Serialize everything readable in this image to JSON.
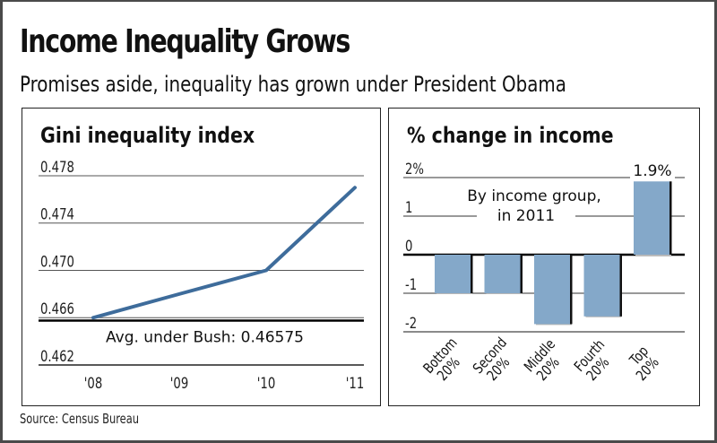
{
  "header": {
    "title": "Income Inequality Grows",
    "subtitle": "Promises aside, inequality has grown under President Obama"
  },
  "source": "Source: Census Bureau",
  "colors": {
    "line": "#3e6c9b",
    "bar": "#84a8c9",
    "bar_shadow": "#111111",
    "grid": "#222222",
    "axis_bottom": "#8a8a8a"
  },
  "chart_data": [
    {
      "type": "line",
      "title": "Gini inequality index",
      "x": [
        "'08",
        "'09",
        "'10",
        "'11"
      ],
      "series": [
        {
          "name": "Gini index",
          "values": [
            0.466,
            0.468,
            0.47,
            0.477
          ]
        }
      ],
      "yticks": [
        "0.478",
        "0.474",
        "0.470",
        "0.466",
        "0.462"
      ],
      "ytick_values": [
        0.478,
        0.474,
        0.47,
        0.466,
        0.462
      ],
      "ylim": [
        0.462,
        0.478
      ],
      "reference_line": {
        "value": 0.46575,
        "label": "Avg. under Bush: 0.46575"
      },
      "xlabel": "",
      "ylabel": "",
      "grid": true
    },
    {
      "type": "bar",
      "title": "% change in income",
      "annotation": [
        "By income group,",
        "in 2011"
      ],
      "categories": [
        [
          "Bottom",
          "20%"
        ],
        [
          "Second",
          "20%"
        ],
        [
          "Middle",
          "20%"
        ],
        [
          "Fourth",
          "20%"
        ],
        [
          "Top",
          "20%"
        ]
      ],
      "values": [
        -1.0,
        -1.0,
        -1.8,
        -1.6,
        1.9
      ],
      "data_labels": [
        "",
        "",
        "",
        "",
        "1.9%"
      ],
      "yticks": [
        "2%",
        "1",
        "0",
        "-1",
        "-2"
      ],
      "ytick_values": [
        2,
        1,
        0,
        -1,
        -2
      ],
      "ylim": [
        -2,
        2
      ],
      "xlabel": "",
      "ylabel": "",
      "grid": true
    }
  ]
}
